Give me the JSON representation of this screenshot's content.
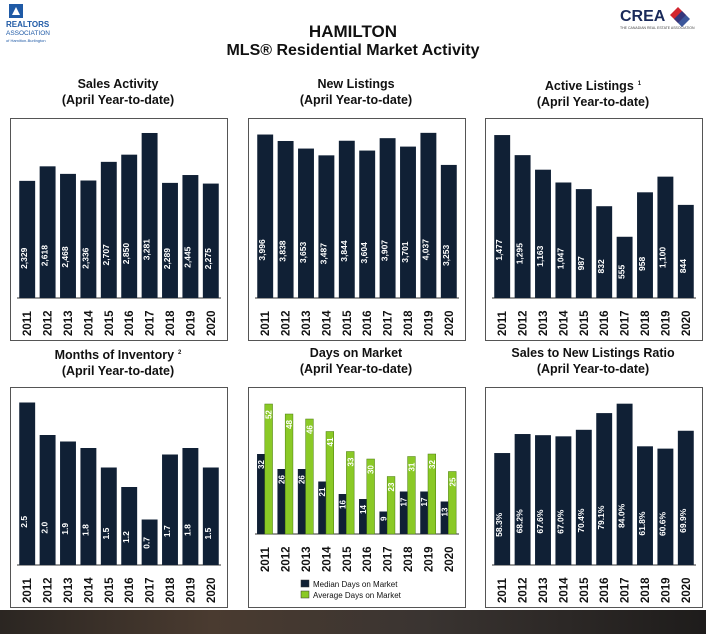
{
  "header": {
    "city": "HAMILTON",
    "subtitle": "MLS® Residential Market Activity",
    "left_logo_lines": [
      "REALTORS",
      "ASSOCIATION",
      "of Hamilton-Burlington"
    ],
    "right_logo": "CREA",
    "right_logo_sub": "THE CANADIAN REAL ESTATE ASSOCIATION"
  },
  "colors": {
    "bar": "#102035",
    "green": "#8ac926",
    "label": "#ffffff"
  },
  "chart_data": [
    {
      "type": "bar",
      "title": "Sales Activity",
      "subtitle": "(April Year-to-date)",
      "footnote": "",
      "categories": [
        "2011",
        "2012",
        "2013",
        "2014",
        "2015",
        "2016",
        "2017",
        "2018",
        "2019",
        "2020"
      ],
      "values": [
        2329,
        2618,
        2468,
        2336,
        2707,
        2850,
        3281,
        2289,
        2445,
        2275
      ],
      "labels": [
        "2,329",
        "2,618",
        "2,468",
        "2,336",
        "2,707",
        "2,850",
        "3,281",
        "2,289",
        "2,445",
        "2,275"
      ],
      "ylim": [
        0,
        3400
      ]
    },
    {
      "type": "bar",
      "title": "New Listings",
      "subtitle": "(April Year-to-date)",
      "footnote": "",
      "categories": [
        "2011",
        "2012",
        "2013",
        "2014",
        "2015",
        "2016",
        "2017",
        "2018",
        "2019",
        "2020"
      ],
      "values": [
        3996,
        3838,
        3653,
        3487,
        3844,
        3604,
        3907,
        3701,
        4037,
        3253
      ],
      "labels": [
        "3,996",
        "3,838",
        "3,653",
        "3,487",
        "3,844",
        "3,604",
        "3,907",
        "3,701",
        "4,037",
        "3,253"
      ],
      "ylim": [
        0,
        4180
      ]
    },
    {
      "type": "bar",
      "title": "Active Listings",
      "subtitle": "(April Year-to-date)",
      "footnote": "1",
      "categories": [
        "2011",
        "2012",
        "2013",
        "2014",
        "2015",
        "2016",
        "2017",
        "2018",
        "2019",
        "2020"
      ],
      "values": [
        1477,
        1295,
        1163,
        1047,
        987,
        832,
        555,
        958,
        1100,
        844
      ],
      "labels": [
        "1,477",
        "1,295",
        "1,163",
        "1,047",
        "987",
        "832",
        "555",
        "958",
        "1,100",
        "844"
      ],
      "ylim": [
        0,
        1550
      ]
    },
    {
      "type": "bar",
      "title": "Months of Inventory",
      "subtitle": "(April Year-to-date)",
      "footnote": "2",
      "categories": [
        "2011",
        "2012",
        "2013",
        "2014",
        "2015",
        "2016",
        "2017",
        "2018",
        "2019",
        "2020"
      ],
      "values": [
        2.5,
        2.0,
        1.9,
        1.8,
        1.5,
        1.2,
        0.7,
        1.7,
        1.8,
        1.5
      ],
      "labels": [
        "2.5",
        "2.0",
        "1.9",
        "1.8",
        "1.5",
        "1.2",
        "0.7",
        "1.7",
        "1.8",
        "1.5"
      ],
      "ylim": [
        0,
        2.6
      ]
    },
    {
      "type": "bar",
      "title": "Days on Market",
      "subtitle": "(April Year-to-date)",
      "footnote": "",
      "categories": [
        "2011",
        "2012",
        "2013",
        "2014",
        "2015",
        "2016",
        "2017",
        "2018",
        "2019",
        "2020"
      ],
      "series": [
        {
          "name": "Median Days on Market",
          "values": [
            32,
            26,
            26,
            21,
            16,
            14,
            9,
            17,
            17,
            13
          ]
        },
        {
          "name": "Average Days on Market",
          "values": [
            52,
            48,
            46,
            41,
            33,
            30,
            23,
            31,
            32,
            25
          ]
        }
      ],
      "ylim": [
        0,
        56
      ],
      "legend": "bottom"
    },
    {
      "type": "bar",
      "title": "Sales to New Listings Ratio",
      "subtitle": "(April Year-to-date)",
      "footnote": "",
      "categories": [
        "2011",
        "2012",
        "2013",
        "2014",
        "2015",
        "2016",
        "2017",
        "2018",
        "2019",
        "2020"
      ],
      "values": [
        58.3,
        68.2,
        67.6,
        67.0,
        70.4,
        79.1,
        84.0,
        61.8,
        60.6,
        69.9
      ],
      "labels": [
        "58.3%",
        "68.2%",
        "67.6%",
        "67.0%",
        "70.4%",
        "79.1%",
        "84.0%",
        "61.8%",
        "60.6%",
        "69.9%"
      ],
      "ylim": [
        0,
        88
      ]
    }
  ]
}
